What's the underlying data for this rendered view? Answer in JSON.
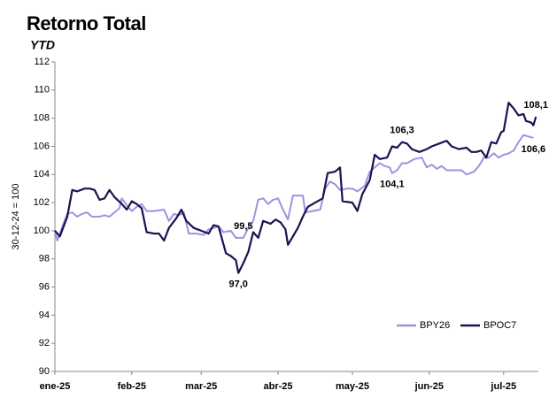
{
  "chart_data": {
    "type": "line",
    "title": "Retorno Total",
    "subtitle": "YTD",
    "y_label": "30-12-24 = 100",
    "xlim": [
      0,
      195
    ],
    "xticks": [
      {
        "value": 0,
        "label": "ene-25"
      },
      {
        "value": 31,
        "label": "feb-25"
      },
      {
        "value": 59,
        "label": "mar-25"
      },
      {
        "value": 90,
        "label": "abr-25"
      },
      {
        "value": 120,
        "label": "may-25"
      },
      {
        "value": 151,
        "label": "jun-25"
      },
      {
        "value": 181,
        "label": "jul-25"
      }
    ],
    "ylim": [
      90,
      112
    ],
    "yticks": [
      90,
      92,
      94,
      96,
      98,
      100,
      102,
      104,
      106,
      108,
      110,
      112
    ],
    "grid": false,
    "legend": "lower right",
    "series": [
      {
        "name": "BPY26",
        "color": "#a58fe0",
        "x": [
          0,
          1,
          3,
          5,
          7,
          9,
          11,
          13,
          15,
          18,
          20,
          22,
          24,
          26,
          27,
          29,
          31,
          33,
          35,
          37,
          40,
          44,
          46,
          48,
          50,
          52,
          54,
          57,
          60,
          62,
          64,
          66,
          68,
          71,
          73,
          76,
          78,
          80,
          82,
          84,
          86,
          88,
          90,
          92,
          94,
          96,
          98,
          100,
          101,
          104,
          107,
          109,
          111,
          113,
          115,
          118,
          120,
          122,
          125,
          127,
          129,
          131,
          133,
          135,
          136,
          138,
          140,
          142,
          145,
          148,
          150,
          152,
          154,
          156,
          158,
          161,
          164,
          166,
          169,
          171,
          173,
          175,
          177,
          179,
          181,
          183,
          185,
          187,
          189,
          191,
          193
        ],
        "values": [
          100,
          99.3,
          100.3,
          101.2,
          101.3,
          101,
          101.2,
          101.3,
          101,
          101,
          101.1,
          101,
          101.3,
          101.6,
          102.3,
          101.8,
          101.4,
          101.7,
          101.9,
          101.4,
          101.4,
          101.5,
          100.7,
          101.2,
          101.1,
          101.3,
          99.8,
          99.8,
          99.7,
          100.1,
          100.2,
          100.3,
          99.9,
          100,
          99.5,
          99.5,
          100.2,
          100.7,
          102.2,
          102.3,
          101.9,
          102.2,
          102.3,
          101.5,
          100.8,
          102.5,
          102.5,
          102.5,
          101.3,
          101.4,
          101.5,
          103,
          103.5,
          103.3,
          102.9,
          103,
          103,
          102.8,
          103.2,
          104.2,
          104.5,
          104.8,
          104.6,
          104.5,
          104.1,
          104.3,
          104.8,
          104.8,
          105.1,
          105.2,
          104.5,
          104.7,
          104.4,
          104.6,
          104.3,
          104.3,
          104.3,
          104,
          104.2,
          104.6,
          105.2,
          105.2,
          105.5,
          105.2,
          105.4,
          105.5,
          105.7,
          106.3,
          106.8,
          106.7,
          106.6
        ]
      },
      {
        "name": "BPOC7",
        "color": "#1c1250",
        "x": [
          0,
          2,
          5,
          7,
          9,
          12,
          14,
          16,
          18,
          20,
          22,
          24,
          27,
          29,
          31,
          33,
          35,
          37,
          40,
          42,
          44,
          46,
          49,
          51,
          53,
          56,
          59,
          62,
          64,
          66,
          69,
          71,
          73,
          74,
          76,
          78,
          80,
          82,
          84,
          87,
          89,
          91,
          93,
          94,
          96,
          98,
          100,
          102,
          105,
          108,
          110,
          113,
          115,
          116,
          120,
          122,
          124,
          127,
          129,
          131,
          134,
          136,
          138,
          140,
          142,
          144,
          147,
          150,
          152,
          155,
          158,
          160,
          163,
          166,
          168,
          170,
          172,
          174,
          176,
          178,
          180,
          181,
          183,
          185,
          187,
          189,
          190,
          192,
          193,
          194
        ],
        "values": [
          100,
          99.6,
          101,
          102.9,
          102.8,
          103,
          103,
          102.9,
          102.2,
          102.3,
          102.9,
          102.4,
          101.9,
          101.5,
          102.1,
          101.9,
          101.6,
          99.9,
          99.8,
          99.8,
          99.3,
          100.2,
          100.9,
          101.5,
          100.7,
          100.2,
          100,
          99.8,
          100.4,
          100.3,
          98.4,
          98.2,
          97.9,
          97,
          97.7,
          98.5,
          99.9,
          99.5,
          100.7,
          100.5,
          100.8,
          100.6,
          100.1,
          99,
          99.6,
          100.2,
          101,
          101.7,
          102,
          102.3,
          104.1,
          104.2,
          104.5,
          102.1,
          102,
          101.4,
          102.6,
          103.6,
          105.4,
          105.1,
          105.2,
          106,
          105.9,
          106.3,
          106.2,
          105.8,
          105.6,
          105.8,
          106,
          106.2,
          106.4,
          106,
          105.8,
          105.9,
          105.6,
          105.6,
          105.7,
          105.2,
          106.3,
          106.2,
          107,
          107.1,
          109.1,
          108.7,
          108.2,
          108.3,
          107.8,
          107.7,
          107.5,
          108.1
        ]
      }
    ],
    "annotations": [
      {
        "x": 76,
        "y": 99.5,
        "label": "99,5",
        "position": "above"
      },
      {
        "x": 74,
        "y": 97,
        "label": "97,0",
        "position": "below"
      },
      {
        "x": 140,
        "y": 106.3,
        "label": "106,3",
        "position": "above"
      },
      {
        "x": 136,
        "y": 104.1,
        "label": "104,1",
        "position": "below"
      },
      {
        "x": 194,
        "y": 108.1,
        "label": "108,1",
        "position": "above"
      },
      {
        "x": 193,
        "y": 106.6,
        "label": "106,6",
        "position": "below"
      }
    ]
  }
}
